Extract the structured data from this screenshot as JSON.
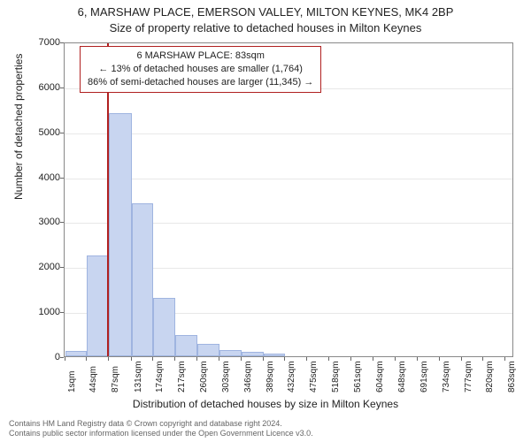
{
  "chart": {
    "type": "histogram",
    "title_line1": "6, MARSHAW PLACE, EMERSON VALLEY, MILTON KEYNES, MK4 2BP",
    "title_line2": "Size of property relative to detached houses in Milton Keynes",
    "x_axis_label": "Distribution of detached houses by size in Milton Keynes",
    "y_axis_label": "Number of detached properties",
    "background_color": "#ffffff",
    "grid_color": "#e8e8e8",
    "axis_color": "#888888",
    "tick_color": "#666666",
    "text_color": "#222222",
    "bar_fill": "#c8d5f0",
    "bar_border": "#9fb4e0",
    "marker_color": "#b02020",
    "title_fontsize": 13,
    "axis_label_fontsize": 12,
    "tick_fontsize": 11,
    "xtick_fontsize": 10,
    "ylim": [
      0,
      7000
    ],
    "ytick_step": 1000,
    "yticks": [
      0,
      1000,
      2000,
      3000,
      4000,
      5000,
      6000,
      7000
    ],
    "xlim_sqm": [
      0,
      880
    ],
    "xtick_labels": [
      "1sqm",
      "44sqm",
      "87sqm",
      "131sqm",
      "174sqm",
      "217sqm",
      "260sqm",
      "303sqm",
      "346sqm",
      "389sqm",
      "432sqm",
      "475sqm",
      "518sqm",
      "561sqm",
      "604sqm",
      "648sqm",
      "691sqm",
      "734sqm",
      "777sqm",
      "820sqm",
      "863sqm"
    ],
    "xtick_positions_sqm": [
      1,
      44,
      87,
      131,
      174,
      217,
      260,
      303,
      346,
      389,
      432,
      475,
      518,
      561,
      604,
      648,
      691,
      734,
      777,
      820,
      863
    ],
    "bars": [
      {
        "x_start_sqm": 1,
        "x_end_sqm": 44,
        "value": 120
      },
      {
        "x_start_sqm": 44,
        "x_end_sqm": 87,
        "value": 2250
      },
      {
        "x_start_sqm": 87,
        "x_end_sqm": 131,
        "value": 5400
      },
      {
        "x_start_sqm": 131,
        "x_end_sqm": 174,
        "value": 3400
      },
      {
        "x_start_sqm": 174,
        "x_end_sqm": 217,
        "value": 1300
      },
      {
        "x_start_sqm": 217,
        "x_end_sqm": 260,
        "value": 480
      },
      {
        "x_start_sqm": 260,
        "x_end_sqm": 303,
        "value": 280
      },
      {
        "x_start_sqm": 303,
        "x_end_sqm": 346,
        "value": 140
      },
      {
        "x_start_sqm": 346,
        "x_end_sqm": 389,
        "value": 90
      },
      {
        "x_start_sqm": 389,
        "x_end_sqm": 432,
        "value": 60
      }
    ],
    "marker_position_sqm": 83,
    "annotation": {
      "line1": "6 MARSHAW PLACE: 83sqm",
      "line2": "← 13% of detached houses are smaller (1,764)",
      "line3": "86% of semi-detached houses are larger (11,345) →",
      "border_color": "#b02020",
      "fontsize": 11
    },
    "footer": {
      "line1": "Contains HM Land Registry data © Crown copyright and database right 2024.",
      "line2": "Contains public sector information licensed under the Open Government Licence v3.0.",
      "color": "#666666",
      "fontsize": 9
    }
  }
}
